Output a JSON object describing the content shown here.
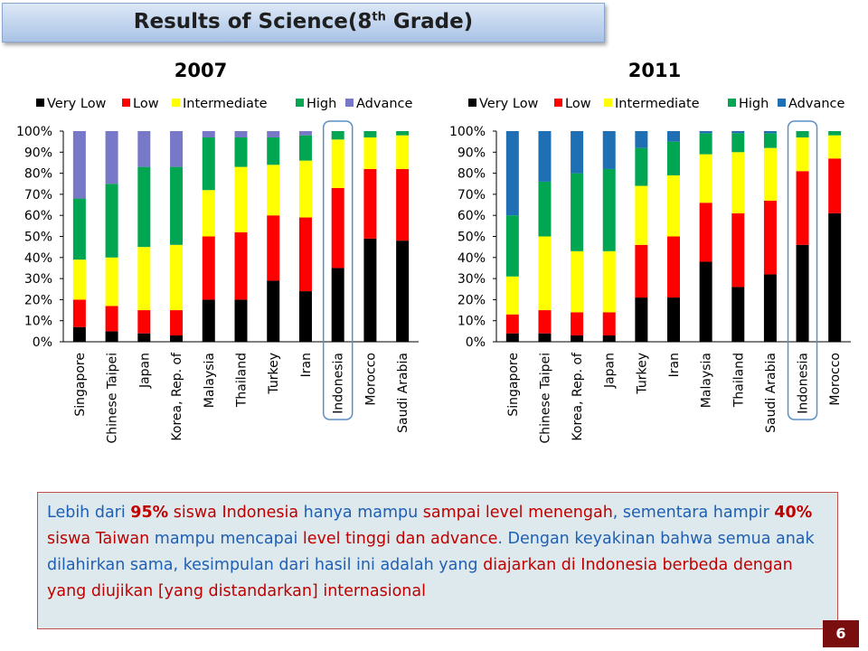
{
  "title": {
    "main": "Results of Science(8",
    "sup": "th",
    "tail": " Grade)"
  },
  "legend_labels": [
    "Very Low",
    "Low",
    "Intermediate",
    "High",
    "Advance"
  ],
  "chart_data": [
    {
      "type": "bar",
      "stacked": true,
      "title": "2007",
      "y_ticks": [
        "0%",
        "10%",
        "20%",
        "30%",
        "40%",
        "50%",
        "60%",
        "70%",
        "80%",
        "90%",
        "100%"
      ],
      "ylim": [
        0,
        100
      ],
      "highlight_category": "Indonesia",
      "categories": [
        "Singapore",
        "Chinese Taipei",
        "Japan",
        "Korea, Rep. of",
        "Malaysia",
        "Thailand",
        "Turkey",
        "Iran",
        "Indonesia",
        "Morocco",
        "Saudi Arabia"
      ],
      "series": [
        {
          "name": "Very Low",
          "color": "#000000",
          "values": [
            7,
            5,
            4,
            3,
            20,
            20,
            29,
            24,
            35,
            49,
            48
          ]
        },
        {
          "name": "Low",
          "color": "#ff0000",
          "values": [
            13,
            12,
            11,
            12,
            30,
            32,
            31,
            35,
            38,
            33,
            34
          ]
        },
        {
          "name": "Intermediate",
          "color": "#ffff00",
          "values": [
            19,
            23,
            30,
            31,
            22,
            31,
            24,
            27,
            23,
            15,
            16
          ]
        },
        {
          "name": "High",
          "color": "#00a651",
          "values": [
            29,
            35,
            38,
            37,
            25,
            14,
            13,
            12,
            4,
            3,
            2
          ]
        },
        {
          "name": "Advance",
          "color": "#7878c8",
          "values": [
            32,
            25,
            17,
            17,
            3,
            3,
            3,
            2,
            0,
            0,
            0
          ]
        }
      ]
    },
    {
      "type": "bar",
      "stacked": true,
      "title": "2011",
      "y_ticks": [
        "0%",
        "10%",
        "20%",
        "30%",
        "40%",
        "50%",
        "60%",
        "70%",
        "80%",
        "90%",
        "100%"
      ],
      "ylim": [
        0,
        100
      ],
      "highlight_category": "Indonesia",
      "categories": [
        "Singapore",
        "Chinese Taipei",
        "Korea, Rep. of",
        "Japan",
        "Turkey",
        "Iran",
        "Malaysia",
        "Thailand",
        "Saudi Arabia",
        "Indonesia",
        "Morocco"
      ],
      "series": [
        {
          "name": "Very Low",
          "color": "#000000",
          "values": [
            4,
            4,
            3,
            3,
            21,
            21,
            38,
            26,
            32,
            46,
            61
          ]
        },
        {
          "name": "Low",
          "color": "#ff0000",
          "values": [
            9,
            11,
            11,
            11,
            25,
            29,
            28,
            35,
            35,
            35,
            26
          ]
        },
        {
          "name": "Intermediate",
          "color": "#ffff00",
          "values": [
            18,
            35,
            29,
            29,
            28,
            29,
            23,
            29,
            25,
            16,
            11
          ]
        },
        {
          "name": "High",
          "color": "#00a651",
          "values": [
            29,
            26,
            37,
            39,
            18,
            16,
            10,
            9,
            7,
            3,
            2
          ]
        },
        {
          "name": "Advance",
          "color": "#1f6fb4",
          "values": [
            40,
            24,
            20,
            18,
            8,
            5,
            1,
            1,
            1,
            0,
            0
          ]
        }
      ]
    }
  ],
  "note": {
    "segments": [
      {
        "text": "Lebih dari ",
        "style": "blue"
      },
      {
        "text": "95%",
        "style": "red-bold"
      },
      {
        "text": " siswa Indonesia ",
        "style": "red"
      },
      {
        "text": "hanya mampu ",
        "style": "blue"
      },
      {
        "text": "sampai level menengah",
        "style": "red"
      },
      {
        "text": ", sementara hampir ",
        "style": "blue"
      },
      {
        "text": "40%",
        "style": "red-bold"
      },
      {
        "text": "  siswa Taiwan ",
        "style": "red"
      },
      {
        "text": "mampu mencapai ",
        "style": "blue"
      },
      {
        "text": "level tinggi dan advance",
        "style": "red"
      },
      {
        "text": ". Dengan keyakinan bahwa semua anak dilahirkan sama, kesimpulan dari hasil ini adalah yang ",
        "style": "blue"
      },
      {
        "text": "diajarkan di Indonesia berbeda dengan yang diujikan [yang distandarkan] internasional",
        "style": "red"
      }
    ]
  },
  "page_number": "6"
}
